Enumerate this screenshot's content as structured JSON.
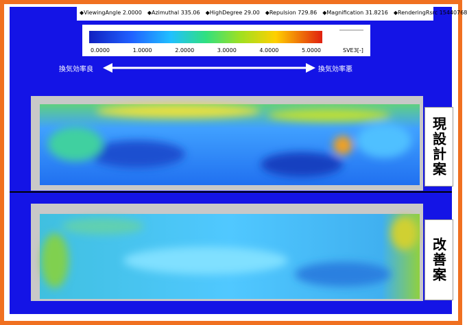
{
  "header": {
    "params": [
      "◆ViewingAngle 2.0000",
      "◆Azimuthal 335.06",
      "◆HighDegree 29.00",
      "◆Repulsion 729.86",
      "◆Magnification 31.8216",
      "◆RenderingRsrc 15440768"
    ]
  },
  "legend": {
    "ticks": [
      "0.0000",
      "1.0000",
      "2.0000",
      "3.0000",
      "4.0000",
      "5.0000"
    ],
    "unit": "SVE3[-]"
  },
  "arrow": {
    "left": "換気効率良",
    "right": "換気効率悪"
  },
  "panels": [
    {
      "label": "現設計案"
    },
    {
      "label": "改善案"
    }
  ]
}
